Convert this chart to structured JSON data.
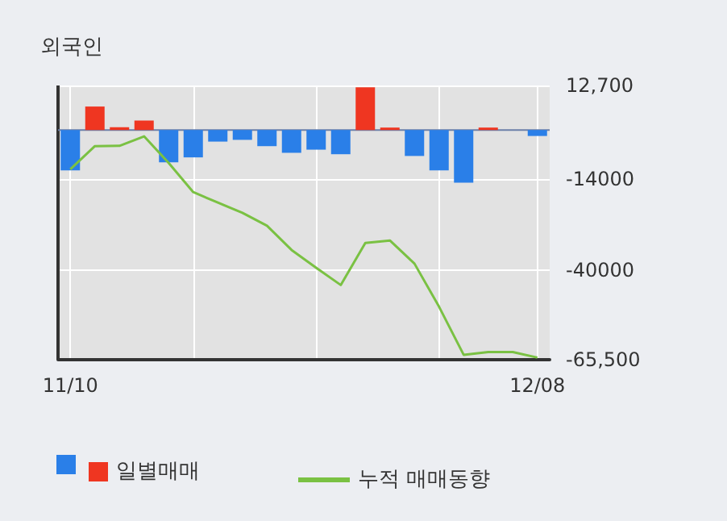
{
  "chart_data": {
    "type": "bar",
    "title": "외국인",
    "categories": [
      "11/10",
      null,
      null,
      null,
      null,
      null,
      null,
      null,
      null,
      null,
      null,
      null,
      null,
      null,
      null,
      null,
      null,
      null,
      null,
      "12/08"
    ],
    "series": [
      {
        "name": "일별매매",
        "colors": [
          "#2a7fe8",
          "#ef3621",
          "#ef3621",
          "#ef3621",
          "#2a7fe8",
          "#2a7fe8",
          "#2a7fe8",
          "#2a7fe8",
          "#2a7fe8",
          "#2a7fe8",
          "#2a7fe8",
          "#2a7fe8",
          "#ef3621",
          "#ef3621",
          "#2a7fe8",
          "#2a7fe8",
          "#2a7fe8",
          "#ef3621",
          "#ef3621",
          "#2a7fe8"
        ],
        "values": [
          -11500,
          6700,
          800,
          2700,
          -9200,
          -7800,
          -3300,
          -2800,
          -4600,
          -6500,
          -5600,
          -6900,
          12200,
          700,
          -7400,
          -11500,
          -15000,
          700,
          0,
          -1700
        ]
      },
      {
        "name": "누적 매매동향",
        "type": "line",
        "color": "#7ac143",
        "values": [
          -11200,
          -4600,
          -4500,
          -1800,
          -9400,
          -17700,
          -20700,
          -23600,
          -27300,
          -34200,
          -39300,
          -44200,
          -32200,
          -31500,
          -38100,
          -50400,
          -64100,
          -63300,
          -63300,
          -64900
        ]
      }
    ],
    "ylim": [
      -65500,
      12700
    ],
    "yticks": [
      {
        "value": 12700,
        "label": "12,700"
      },
      -14000,
      -40000,
      {
        "value": -65500,
        "label": "-65,500"
      }
    ],
    "ref_lines": [
      {
        "axis": "y",
        "value": 0,
        "color": "#6b7fa8"
      }
    ],
    "grid": true,
    "legend": "bottom left",
    "marker": "none"
  }
}
